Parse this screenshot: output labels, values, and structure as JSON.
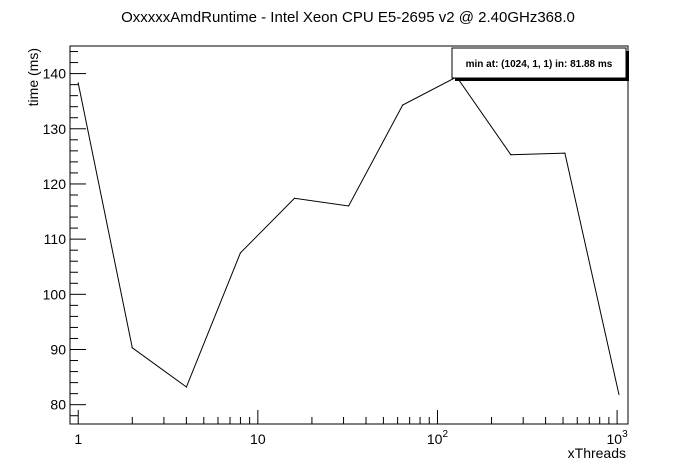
{
  "chart_data": {
    "type": "line",
    "title": "OxxxxxAmdRuntime - Intel Xeon CPU E5-2695 v2 @ 2.40GHz368.0",
    "xlabel": "xThreads",
    "ylabel": "time (ms)",
    "x_scale": "log10",
    "xlim": [
      0.9,
      1150
    ],
    "ylim": [
      76.5,
      145
    ],
    "grid": false,
    "x_ticks": [
      {
        "value": 1,
        "label": "1"
      },
      {
        "value": 10,
        "label": "10"
      },
      {
        "value": 100,
        "label": "10",
        "exp": "2"
      },
      {
        "value": 1000,
        "label": "10",
        "exp": "3"
      }
    ],
    "y_ticks": [
      {
        "value": 80,
        "label": "80"
      },
      {
        "value": 90,
        "label": "90"
      },
      {
        "value": 100,
        "label": "100"
      },
      {
        "value": 110,
        "label": "110"
      },
      {
        "value": 120,
        "label": "120"
      },
      {
        "value": 130,
        "label": "130"
      },
      {
        "value": 140,
        "label": "140"
      }
    ],
    "series": [
      {
        "x": [
          1,
          2,
          4,
          8,
          16,
          32,
          64,
          128,
          256,
          512,
          1024
        ],
        "y": [
          138.3,
          90.3,
          83.2,
          107.5,
          117.4,
          116.0,
          134.3,
          139.4,
          125.3,
          125.6,
          81.88
        ]
      }
    ],
    "annotation": {
      "text": "min at: (1024, 1, 1) in: 81.88 ms",
      "position": "top-right"
    }
  },
  "colors": {
    "line": "#000000",
    "axis": "#000000",
    "background": "#ffffff",
    "legend_fill": "#ffffff",
    "legend_shadow": "#000000"
  }
}
